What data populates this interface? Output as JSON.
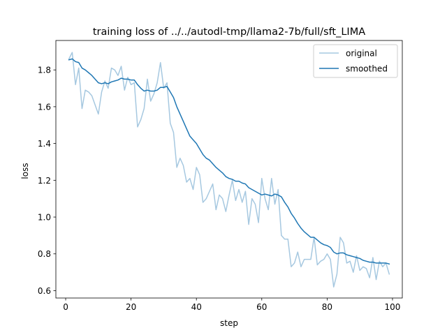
{
  "chart_data": {
    "type": "line",
    "title": "training loss of ../../autodl-tmp/llama2-7b/full/sft_LIMA",
    "xlabel": "step",
    "ylabel": "loss",
    "xlim": [
      -3,
      103
    ],
    "ylim": [
      0.56,
      1.96
    ],
    "xticks": [
      0,
      20,
      40,
      60,
      80,
      100
    ],
    "yticks": [
      0.6,
      0.8,
      1.0,
      1.2,
      1.4,
      1.6,
      1.8
    ],
    "ytick_labels": [
      "0.6",
      "0.8",
      "1.0",
      "1.2",
      "1.4",
      "1.6",
      "1.8"
    ],
    "grid": false,
    "legend_position": "upper right",
    "colors": {
      "original": "#a6c8e0",
      "smoothed": "#1f77b4"
    },
    "x": [
      1,
      2,
      3,
      4,
      5,
      6,
      7,
      8,
      9,
      10,
      11,
      12,
      13,
      14,
      15,
      16,
      17,
      18,
      19,
      20,
      21,
      22,
      23,
      24,
      25,
      26,
      27,
      28,
      29,
      30,
      31,
      32,
      33,
      34,
      35,
      36,
      37,
      38,
      39,
      40,
      41,
      42,
      43,
      44,
      45,
      46,
      47,
      48,
      49,
      50,
      51,
      52,
      53,
      54,
      55,
      56,
      57,
      58,
      59,
      60,
      61,
      62,
      63,
      64,
      65,
      66,
      67,
      68,
      69,
      70,
      71,
      72,
      73,
      74,
      75,
      76,
      77,
      78,
      79,
      80,
      81,
      82,
      83,
      84,
      85,
      86,
      87,
      88,
      89,
      90,
      91,
      92,
      93,
      94,
      95,
      96,
      97,
      98,
      99
    ],
    "series": [
      {
        "name": "original",
        "values": [
          1.86,
          1.895,
          1.72,
          1.81,
          1.59,
          1.69,
          1.68,
          1.66,
          1.61,
          1.56,
          1.68,
          1.74,
          1.7,
          1.81,
          1.8,
          1.77,
          1.82,
          1.69,
          1.76,
          1.72,
          1.73,
          1.49,
          1.53,
          1.59,
          1.75,
          1.63,
          1.67,
          1.73,
          1.84,
          1.7,
          1.73,
          1.51,
          1.46,
          1.27,
          1.32,
          1.28,
          1.19,
          1.21,
          1.15,
          1.27,
          1.23,
          1.08,
          1.1,
          1.14,
          1.18,
          1.04,
          1.12,
          1.1,
          1.03,
          1.12,
          1.2,
          1.09,
          1.15,
          1.08,
          1.14,
          0.96,
          1.1,
          1.07,
          0.97,
          1.21,
          1.1,
          1.04,
          1.21,
          1.07,
          1.15,
          0.9,
          0.88,
          0.88,
          0.73,
          0.75,
          0.81,
          0.73,
          0.77,
          0.77,
          0.77,
          0.89,
          0.74,
          0.76,
          0.77,
          0.8,
          0.77,
          0.62,
          0.69,
          0.89,
          0.86,
          0.75,
          0.76,
          0.7,
          0.79,
          0.71,
          0.73,
          0.72,
          0.67,
          0.78,
          0.66,
          0.76,
          0.73,
          0.75,
          0.69
        ]
      },
      {
        "name": "smoothed",
        "values": [
          1.855,
          1.86,
          1.845,
          1.84,
          1.81,
          1.8,
          1.785,
          1.77,
          1.75,
          1.73,
          1.725,
          1.73,
          1.725,
          1.735,
          1.74,
          1.745,
          1.755,
          1.75,
          1.75,
          1.745,
          1.745,
          1.72,
          1.7,
          1.685,
          1.69,
          1.685,
          1.685,
          1.69,
          1.705,
          1.705,
          1.71,
          1.68,
          1.65,
          1.6,
          1.56,
          1.52,
          1.48,
          1.44,
          1.42,
          1.4,
          1.37,
          1.34,
          1.32,
          1.31,
          1.29,
          1.27,
          1.255,
          1.24,
          1.22,
          1.21,
          1.205,
          1.195,
          1.195,
          1.185,
          1.18,
          1.16,
          1.15,
          1.14,
          1.13,
          1.12,
          1.125,
          1.12,
          1.115,
          1.125,
          1.12,
          1.11,
          1.08,
          1.055,
          1.02,
          0.995,
          0.965,
          0.94,
          0.92,
          0.905,
          0.89,
          0.89,
          0.875,
          0.86,
          0.85,
          0.845,
          0.835,
          0.81,
          0.8,
          0.805,
          0.805,
          0.795,
          0.79,
          0.785,
          0.78,
          0.775,
          0.765,
          0.76,
          0.755,
          0.755,
          0.75,
          0.75,
          0.75,
          0.75,
          0.745
        ]
      }
    ]
  }
}
